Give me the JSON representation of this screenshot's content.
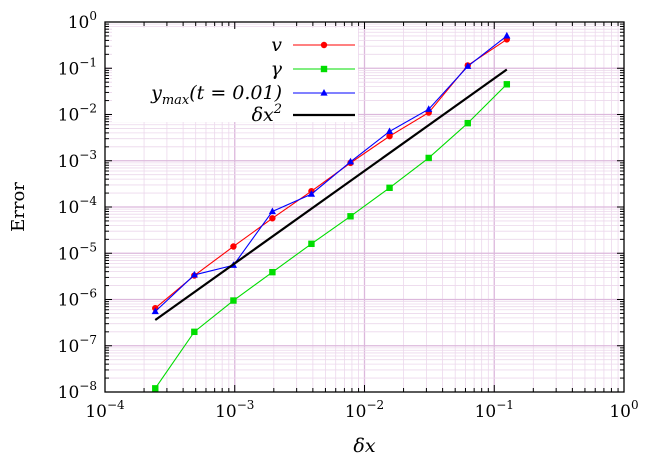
{
  "chart_data": {
    "type": "line",
    "title": "",
    "xlabel": "δx",
    "ylabel": "Error",
    "xscale": "log",
    "yscale": "log",
    "xlim": [
      0.0001,
      1
    ],
    "ylim": [
      1e-08,
      1
    ],
    "grid": true,
    "legend_position": "top-left",
    "x_ticks": [
      {
        "value": 0.0001,
        "base": "10",
        "exp": "−4"
      },
      {
        "value": 0.001,
        "base": "10",
        "exp": "−3"
      },
      {
        "value": 0.01,
        "base": "10",
        "exp": "−2"
      },
      {
        "value": 0.1,
        "base": "10",
        "exp": "−1"
      },
      {
        "value": 1,
        "base": "10",
        "exp": "0"
      }
    ],
    "y_ticks": [
      {
        "value": 1e-08,
        "base": "10",
        "exp": "−8"
      },
      {
        "value": 1e-07,
        "base": "10",
        "exp": "−7"
      },
      {
        "value": 1e-06,
        "base": "10",
        "exp": "−6"
      },
      {
        "value": 1e-05,
        "base": "10",
        "exp": "−5"
      },
      {
        "value": 0.0001,
        "base": "10",
        "exp": "−4"
      },
      {
        "value": 0.001,
        "base": "10",
        "exp": "−3"
      },
      {
        "value": 0.01,
        "base": "10",
        "exp": "−2"
      },
      {
        "value": 0.1,
        "base": "10",
        "exp": "−1"
      },
      {
        "value": 1,
        "base": "10",
        "exp": "0"
      }
    ],
    "series": [
      {
        "name": "v",
        "color": "#ff0000",
        "marker": "circle",
        "x": [
          0.000244,
          0.000488,
          0.000977,
          0.00195,
          0.0039,
          0.0078,
          0.0156,
          0.03125,
          0.0625,
          0.125
        ],
        "y": [
          6.5e-07,
          3.3e-06,
          1.4e-05,
          5.7e-05,
          0.00022,
          0.0009,
          0.0034,
          0.011,
          0.115,
          0.42
        ]
      },
      {
        "name": "γ",
        "color": "#00dd00",
        "marker": "square",
        "x": [
          0.000244,
          0.000488,
          0.000977,
          0.00195,
          0.0039,
          0.0078,
          0.0156,
          0.03125,
          0.0625,
          0.125
        ],
        "y": [
          1.2e-08,
          2e-07,
          9.5e-07,
          3.9e-06,
          1.6e-05,
          6.3e-05,
          0.00026,
          0.00115,
          0.0065,
          0.045
        ]
      },
      {
        "name": "y_max(t = 0.01)",
        "name_main": "y",
        "name_sub": "max",
        "name_rest": "(t = 0.01)",
        "color": "#0000ff",
        "marker": "triangle",
        "x": [
          0.000244,
          0.000488,
          0.000977,
          0.00195,
          0.0039,
          0.0078,
          0.0156,
          0.03125,
          0.0625,
          0.125
        ],
        "y": [
          5.5e-07,
          3.4e-06,
          5.5e-06,
          8e-05,
          0.00019,
          0.00095,
          0.0043,
          0.013,
          0.11,
          0.5
        ]
      },
      {
        "name": "δx^2",
        "name_main": "δx",
        "name_sup": "2",
        "color": "#000000",
        "marker": "none",
        "x": [
          0.000244,
          0.125
        ],
        "y": [
          3.6e-07,
          0.094
        ]
      }
    ]
  }
}
